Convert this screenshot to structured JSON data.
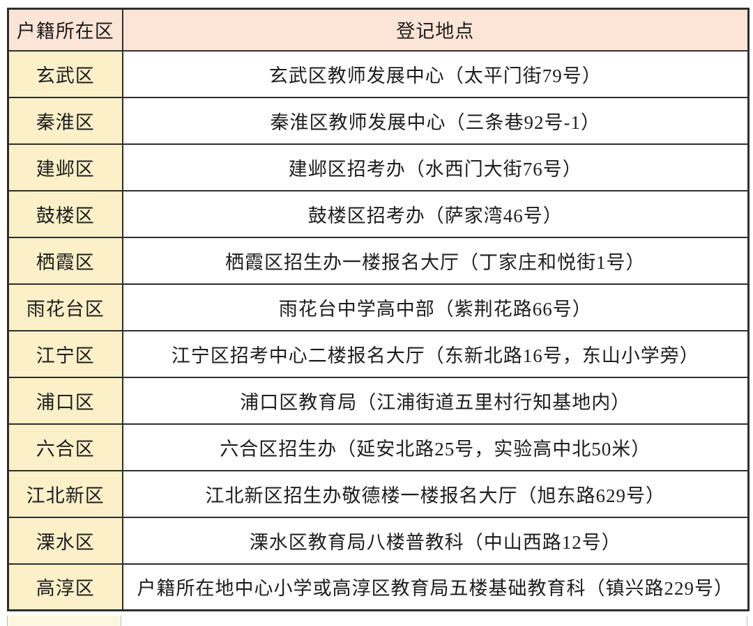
{
  "colors": {
    "header_bg": "#fce4d7",
    "district_bg": "#fbf0c8",
    "border": "#2e2e2e",
    "text": "#1d1d1d"
  },
  "table": {
    "headers": {
      "district": "户籍所在区",
      "location": "登记地点"
    },
    "rows": [
      {
        "district": "玄武区",
        "location": "玄武区教师发展中心（太平门街79号）"
      },
      {
        "district": "秦淮区",
        "location": "秦淮区教师发展中心（三条巷92号-1）"
      },
      {
        "district": "建邺区",
        "location": "建邺区招考办（水西门大街76号）"
      },
      {
        "district": "鼓楼区",
        "location": "鼓楼区招考办（萨家湾46号）"
      },
      {
        "district": "栖霞区",
        "location": "栖霞区招生办一楼报名大厅（丁家庄和悦街1号）"
      },
      {
        "district": "雨花台区",
        "location": "雨花台中学高中部（紫荆花路66号）"
      },
      {
        "district": "江宁区",
        "location": "江宁区招考中心二楼报名大厅（东新北路16号，东山小学旁）"
      },
      {
        "district": "浦口区",
        "location": "浦口区教育局（江浦街道五里村行知基地内）"
      },
      {
        "district": "六合区",
        "location": "六合区招生办（延安北路25号，实验高中北50米）"
      },
      {
        "district": "江北新区",
        "location": "江北新区招生办敬德楼一楼报名大厅（旭东路629号）"
      },
      {
        "district": "溧水区",
        "location": "溧水区教育局八楼普教科（中山西路12号）"
      },
      {
        "district": "高淳区",
        "location": "户籍所在地中心小学或高淳区教育局五楼基础教育科（镇兴路229号）"
      }
    ]
  }
}
